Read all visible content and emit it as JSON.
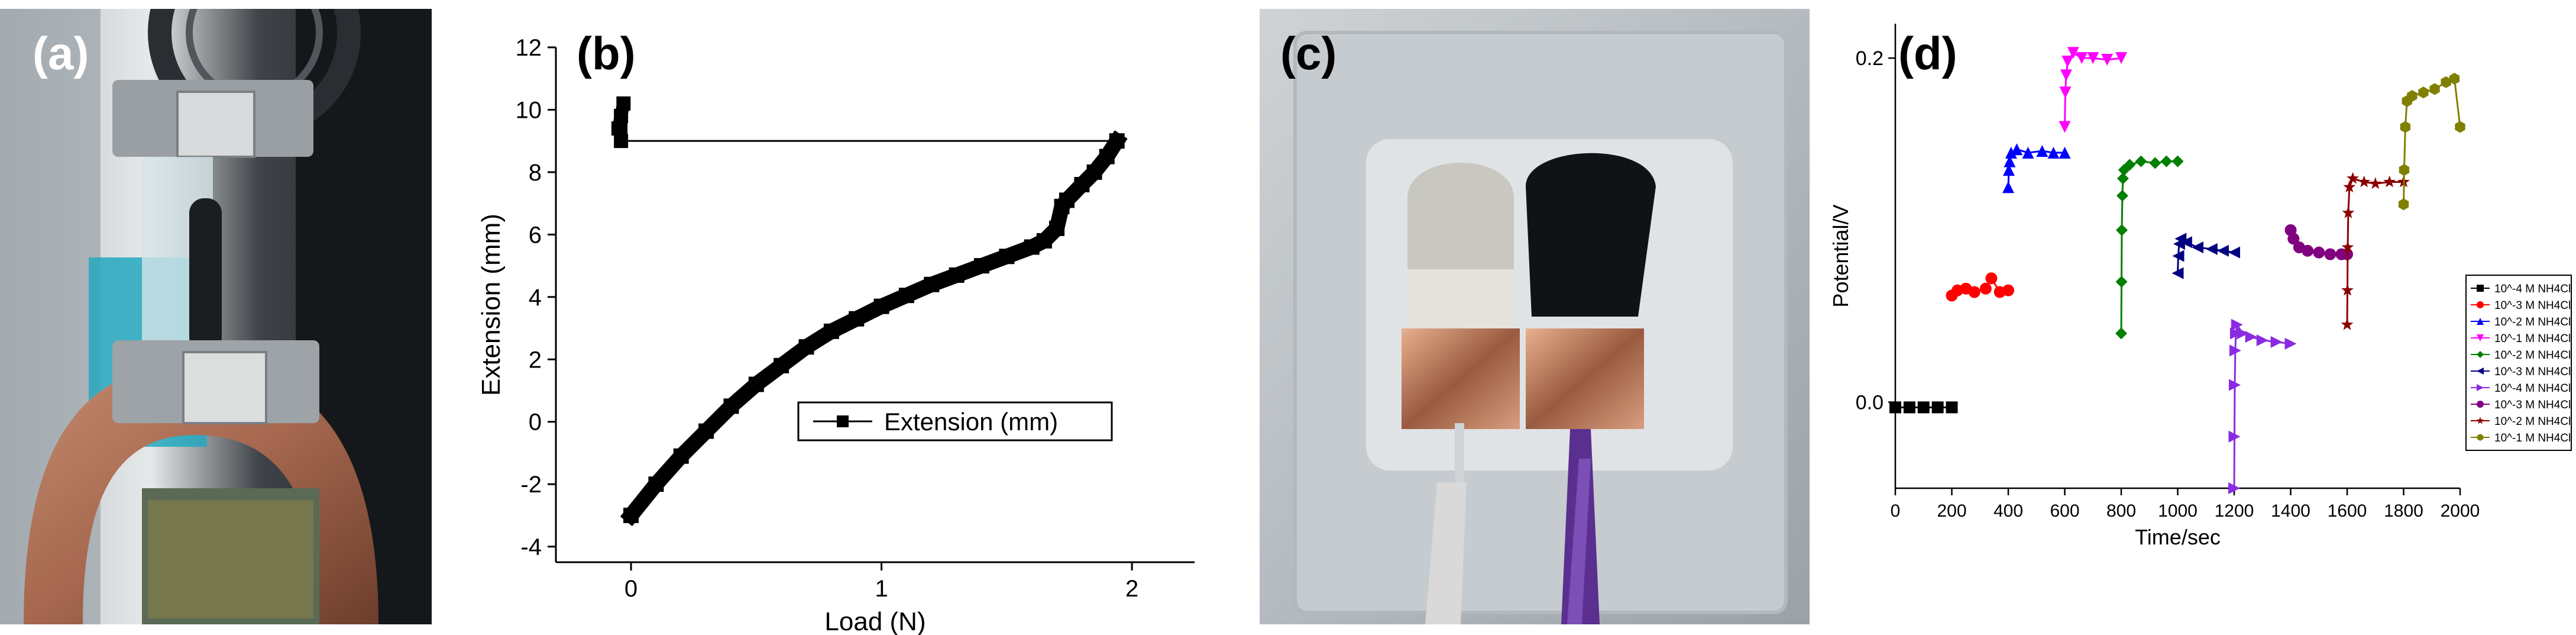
{
  "panels": {
    "a": {
      "label": "(a)"
    },
    "b": {
      "label": "(b)"
    },
    "c": {
      "label": "(c)"
    },
    "d": {
      "label": "(d)"
    }
  },
  "chart_data": [
    {
      "type": "scatter",
      "panel": "b",
      "xlabel": "Load (N)",
      "ylabel": "Extension (mm)",
      "xlim": [
        -0.3,
        2.25
      ],
      "ylim": [
        -4.5,
        12
      ],
      "x_ticks": [
        0,
        1,
        2
      ],
      "y_ticks": [
        -4,
        -2,
        0,
        2,
        4,
        6,
        8,
        10,
        12
      ],
      "grid": false,
      "legend": {
        "position": "lower-right",
        "entries": [
          "Extension (mm)"
        ]
      },
      "series": [
        {
          "name": "Extension (mm)",
          "color": "#000000",
          "marker": "square",
          "x": [
            0.0,
            0.1,
            0.2,
            0.3,
            0.4,
            0.5,
            0.6,
            0.7,
            0.8,
            0.9,
            1.0,
            1.1,
            1.2,
            1.3,
            1.4,
            1.5,
            1.6,
            1.65,
            1.7,
            1.72,
            1.74,
            1.8,
            1.85,
            1.9,
            1.94
          ],
          "y": [
            -3.0,
            -2.0,
            -1.1,
            -0.3,
            0.5,
            1.2,
            1.8,
            2.4,
            2.9,
            3.3,
            3.7,
            4.05,
            4.4,
            4.7,
            5.0,
            5.3,
            5.6,
            5.8,
            6.2,
            6.9,
            7.1,
            7.6,
            8.0,
            8.5,
            9.0
          ],
          "extra": [
            {
              "x": [
                1.94,
                -0.03
              ],
              "y": [
                9.0,
                9.0
              ],
              "style": "line"
            },
            {
              "x": [
                -0.04,
                -0.04,
                -0.03,
                -0.05
              ],
              "y": [
                9.0,
                9.8,
                10.2,
                9.4
              ],
              "style": "markers"
            }
          ]
        }
      ]
    },
    {
      "type": "scatter",
      "panel": "d",
      "xlabel": "Time/sec",
      "ylabel": "Potential/V",
      "xlim": [
        0,
        2000
      ],
      "ylim": [
        -0.05,
        0.22
      ],
      "x_ticks": [
        0,
        200,
        400,
        600,
        800,
        1000,
        1200,
        1400,
        1600,
        1800,
        2000
      ],
      "y_ticks": [
        0.0,
        0.2
      ],
      "grid": false,
      "legend": {
        "position": "right",
        "entries": [
          "10^-4 M NH4Cl",
          "10^-3 M NH4Cl",
          "10^-2 M NH4Cl",
          "10^-1 M NH4Cl",
          "10^-2 M NH4Cl",
          "10^-3 M NH4Cl",
          "10^-4 M NH4Cl",
          "10^-3 M NH4Cl",
          "10^-2 M NH4Cl",
          "10^-1 M NH4Cl"
        ]
      },
      "series": [
        {
          "name": "10^-4 M NH4Cl",
          "color": "#000000",
          "marker": "square",
          "x": [
            0,
            50,
            100,
            150,
            200
          ],
          "y": [
            -0.003,
            -0.003,
            -0.003,
            -0.003,
            -0.003
          ]
        },
        {
          "name": "10^-3 M NH4Cl",
          "color": "#ff0000",
          "marker": "circle",
          "x": [
            200,
            220,
            250,
            280,
            320,
            340,
            370,
            400
          ],
          "y": [
            0.062,
            0.065,
            0.066,
            0.064,
            0.066,
            0.072,
            0.064,
            0.065
          ]
        },
        {
          "name": "10^-2 M NH4Cl",
          "color": "#0000ff",
          "marker": "triangle-up",
          "x": [
            400,
            402,
            405,
            410,
            430,
            470,
            520,
            560,
            600
          ],
          "y": [
            0.125,
            0.135,
            0.14,
            0.145,
            0.147,
            0.145,
            0.146,
            0.145,
            0.145
          ]
        },
        {
          "name": "10^-1 M NH4Cl",
          "color": "#ff00ff",
          "marker": "triangle-down",
          "x": [
            600,
            602,
            605,
            610,
            630,
            660,
            700,
            750,
            800
          ],
          "y": [
            0.16,
            0.18,
            0.19,
            0.198,
            0.203,
            0.2,
            0.2,
            0.199,
            0.2
          ]
        },
        {
          "name": "10^-2 M NH4Cl",
          "color": "#008000",
          "marker": "diamond",
          "x": [
            800,
            801,
            802,
            804,
            806,
            810,
            830,
            870,
            920,
            960,
            1000
          ],
          "y": [
            0.04,
            0.07,
            0.1,
            0.12,
            0.13,
            0.135,
            0.138,
            0.14,
            0.139,
            0.14,
            0.14
          ]
        },
        {
          "name": "10^-3 M NH4Cl",
          "color": "#000080",
          "marker": "triangle-left",
          "x": [
            1000,
            1002,
            1005,
            1010,
            1030,
            1070,
            1120,
            1160,
            1200
          ],
          "y": [
            0.075,
            0.085,
            0.092,
            0.095,
            0.093,
            0.09,
            0.089,
            0.088,
            0.087
          ]
        },
        {
          "name": "10^-4 M NH4Cl",
          "color": "#8a2be2",
          "marker": "triangle-right",
          "x": [
            1200,
            1201,
            1202,
            1204,
            1206,
            1210,
            1230,
            1260,
            1300,
            1350,
            1400
          ],
          "y": [
            -0.05,
            -0.02,
            0.01,
            0.03,
            0.04,
            0.045,
            0.04,
            0.038,
            0.036,
            0.035,
            0.034
          ]
        },
        {
          "name": "10^-3 M NH4Cl",
          "color": "#800080",
          "marker": "circle",
          "x": [
            1400,
            1410,
            1430,
            1460,
            1500,
            1540,
            1580,
            1600
          ],
          "y": [
            0.1,
            0.095,
            0.09,
            0.088,
            0.087,
            0.086,
            0.086,
            0.086
          ]
        },
        {
          "name": "10^-2 M NH4Cl",
          "color": "#8b0000",
          "marker": "star",
          "x": [
            1600,
            1601,
            1602,
            1604,
            1608,
            1620,
            1660,
            1700,
            1750,
            1800
          ],
          "y": [
            0.045,
            0.065,
            0.09,
            0.11,
            0.125,
            0.13,
            0.128,
            0.127,
            0.128,
            0.128
          ]
        },
        {
          "name": "10^-1 M NH4Cl",
          "color": "#808000",
          "marker": "hexagon",
          "x": [
            1800,
            1802,
            1806,
            1812,
            1830,
            1870,
            1910,
            1950,
            1980,
            2000
          ],
          "y": [
            0.115,
            0.135,
            0.16,
            0.175,
            0.178,
            0.18,
            0.182,
            0.186,
            0.188,
            0.16
          ]
        }
      ]
    }
  ]
}
